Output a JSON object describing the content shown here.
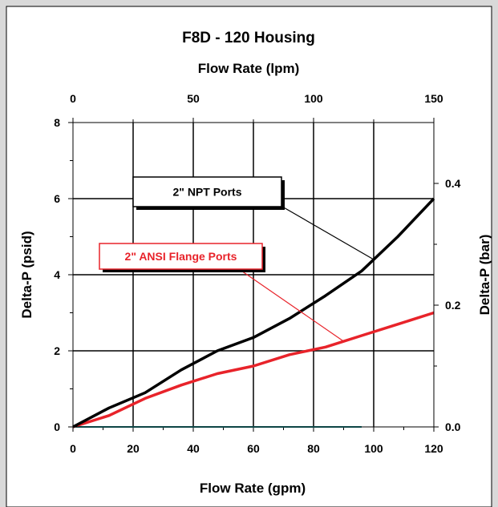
{
  "chart_data": {
    "type": "line",
    "title": "F8D - 120 Housing",
    "xlabel": "Flow Rate (gpm)",
    "x2label": "Flow Rate (lpm)",
    "ylabel": "Delta-P (psid)",
    "y2label": "Delta-P (bar)",
    "xlim": [
      0,
      120
    ],
    "ylim": [
      0,
      8
    ],
    "x2lim": [
      0,
      150
    ],
    "y2lim": [
      0,
      0.5
    ],
    "x_ticks": [
      "0",
      "20",
      "40",
      "60",
      "80",
      "100",
      "120"
    ],
    "y_ticks": [
      "0",
      "2",
      "4",
      "6",
      "8"
    ],
    "x2_ticks": [
      "0",
      "50",
      "100",
      "150"
    ],
    "y2_ticks": [
      "0.0",
      "0.2",
      "0.4"
    ],
    "grid": true,
    "series": [
      {
        "name": "2\" NPT Ports",
        "color": "#000000",
        "x": [
          0,
          12,
          24,
          36,
          48,
          60,
          72,
          84,
          96,
          108,
          120
        ],
        "y": [
          0,
          0.5,
          0.9,
          1.5,
          2.0,
          2.35,
          2.85,
          3.45,
          4.1,
          5.0,
          6.0
        ]
      },
      {
        "name": "2\" ANSI Flange Ports",
        "color": "#e8232a",
        "x": [
          0,
          12,
          24,
          36,
          48,
          60,
          72,
          84,
          96,
          108,
          120
        ],
        "y": [
          0,
          0.3,
          0.75,
          1.1,
          1.4,
          1.6,
          1.9,
          2.1,
          2.4,
          2.7,
          3.0
        ]
      },
      {
        "name": "",
        "color": "#1a8a8a",
        "x": [
          0,
          96
        ],
        "y": [
          0,
          0
        ]
      }
    ],
    "annotations": [
      {
        "text": "2\" NPT Ports",
        "series": 0
      },
      {
        "text": "2\" ANSI Flange Ports",
        "series": 1
      }
    ]
  }
}
